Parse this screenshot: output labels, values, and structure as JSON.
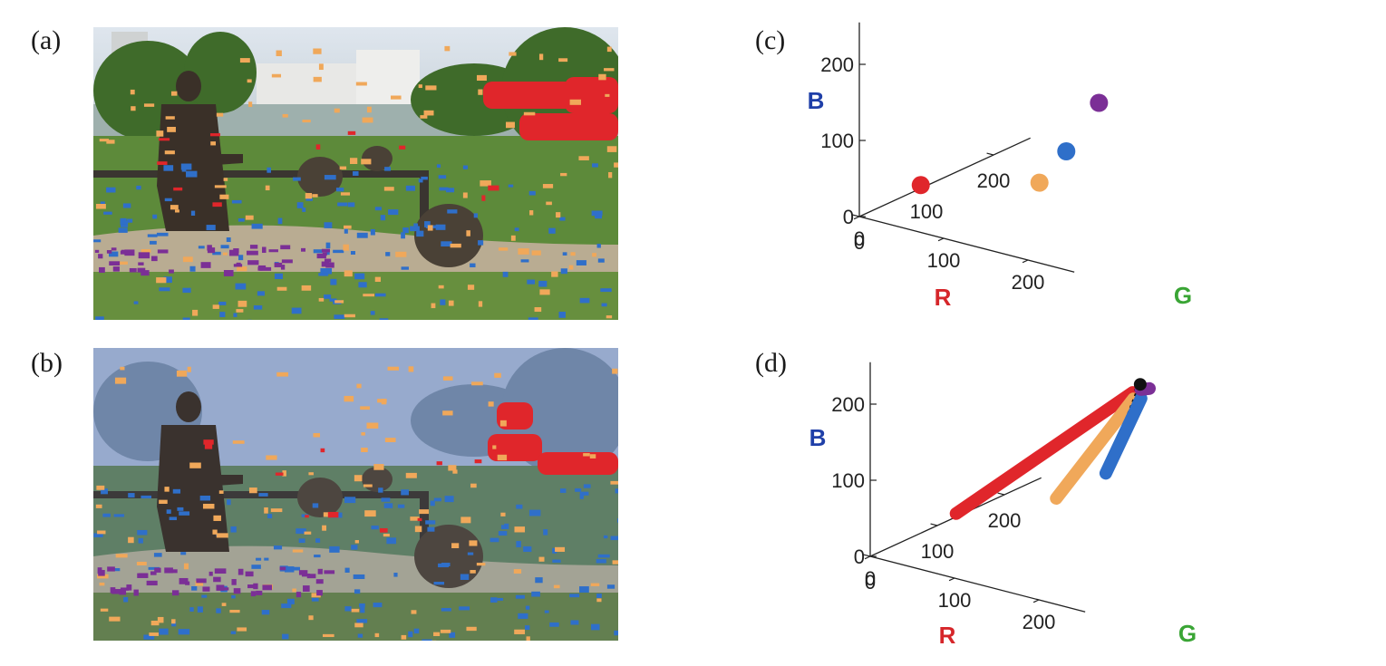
{
  "figure": {
    "panels": [
      {
        "id": "a",
        "label": "(a)",
        "kind": "photo",
        "hazy": false
      },
      {
        "id": "b",
        "label": "(b)",
        "kind": "photo",
        "hazy": true
      },
      {
        "id": "c",
        "label": "(c)",
        "kind": "rgb-scatter"
      },
      {
        "id": "d",
        "label": "(d)",
        "kind": "rgb-haze-lines"
      }
    ],
    "colors": {
      "red": "#e0262b",
      "orange": "#f0a85a",
      "blue": "#2f6fc9",
      "purple": "#7b2f96",
      "black": "#111111",
      "axis_r": "#d6262a",
      "axis_g": "#3aa535",
      "axis_b": "#1f3fa8"
    }
  },
  "chart_data": [
    {
      "type": "scatter",
      "panel": "c",
      "axes": {
        "x": "R",
        "y": "G",
        "z": "B"
      },
      "xlabel": "R",
      "ylabel": "G",
      "zlabel": "B",
      "xticks": [
        "0",
        "100",
        "200"
      ],
      "yticks": [
        "0",
        "100",
        "200"
      ],
      "zticks": [
        "0",
        "100",
        "200"
      ],
      "xlim": [
        0,
        255
      ],
      "ylim": [
        0,
        255
      ],
      "zlim": [
        0,
        255
      ],
      "series": [
        {
          "color": "red",
          "points": [
            [
              45,
              35,
              40
            ]
          ]
        },
        {
          "color": "orange",
          "points": [
            [
              150,
              80,
              55
            ]
          ]
        },
        {
          "color": "blue",
          "points": [
            [
              150,
              120,
              80
            ]
          ]
        },
        {
          "color": "purple",
          "points": [
            [
              145,
              175,
              120
            ]
          ]
        }
      ]
    },
    {
      "type": "line",
      "panel": "d",
      "axes": {
        "x": "R",
        "y": "G",
        "z": "B"
      },
      "xlabel": "R",
      "ylabel": "G",
      "zlabel": "B",
      "xticks": [
        "0",
        "100",
        "200"
      ],
      "yticks": [
        "0",
        "100",
        "200"
      ],
      "zticks": [
        "0",
        "100",
        "200"
      ],
      "xlim": [
        0,
        255
      ],
      "ylim": [
        0,
        255
      ],
      "zlim": [
        0,
        255
      ],
      "airlight": [
        185,
        170,
        210
      ],
      "series": [
        {
          "color": "red",
          "from": [
            70,
            40,
            60
          ],
          "to": [
            180,
            165,
            200
          ]
        },
        {
          "color": "orange",
          "from": [
            165,
            70,
            95
          ],
          "to": [
            185,
            160,
            195
          ]
        },
        {
          "color": "blue",
          "from": [
            180,
            125,
            110
          ],
          "to": [
            190,
            165,
            195
          ]
        },
        {
          "color": "purple",
          "from": [
            150,
            215,
            175
          ],
          "to": [
            180,
            190,
            195
          ]
        }
      ]
    }
  ]
}
